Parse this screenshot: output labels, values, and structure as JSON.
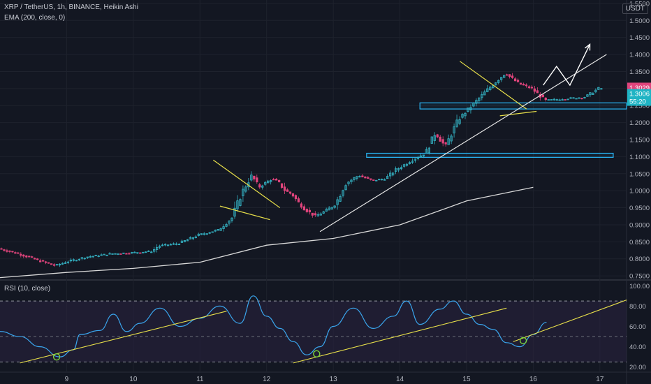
{
  "header": {
    "symbol_line": "XRP / TetherUS, 1h, BINANCE, Heikin Ashi",
    "ema_line": "EMA (200, close, 0)",
    "rsi_line": "RSI (10, close)",
    "currency": "USDT"
  },
  "colors": {
    "background": "#131722",
    "up": "#26a69a",
    "up_body": "#34b3c4",
    "down": "#e0447c",
    "ema": "#d8d8d8",
    "trendline": "#e8e04a",
    "support_box": "#29b6f6",
    "rsi_line": "#3aa6ee",
    "rsi_band": "#2a2340",
    "last_price_tag": "#e0447c",
    "price_tag": "#1fb4c4"
  },
  "chart_data": [
    {
      "type": "candlestick",
      "title": "XRP / TetherUS, 1h, BINANCE, Heikin Ashi",
      "ylim": [
        0.74,
        1.56
      ],
      "y_ticks": [
        0.75,
        0.8,
        0.85,
        0.9,
        0.95,
        1.0,
        1.05,
        1.1,
        1.15,
        1.2,
        1.25,
        1.3,
        1.35,
        1.4,
        1.45,
        1.5,
        1.55
      ],
      "y_tick_labels": [
        "0.7500",
        "0.8000",
        "0.8500",
        "0.9000",
        "0.9500",
        "1.0000",
        "1.0500",
        "1.1000",
        "1.1500",
        "1.2000",
        "1.2500",
        "1.3000",
        "1.3500",
        "1.4000",
        "1.4500",
        "1.5000",
        "1.5500"
      ],
      "xlim": [
        8,
        17.4
      ],
      "x_ticks": [
        9,
        10,
        11,
        12,
        13,
        14,
        15,
        16,
        17
      ],
      "x_tick_labels": [
        "9",
        "10",
        "11",
        "12",
        "13",
        "14",
        "15",
        "16",
        "17"
      ],
      "price_path": [
        [
          8.0,
          0.83
        ],
        [
          8.3,
          0.815
        ],
        [
          8.6,
          0.795
        ],
        [
          8.85,
          0.78
        ],
        [
          9.0,
          0.79
        ],
        [
          9.3,
          0.805
        ],
        [
          9.7,
          0.815
        ],
        [
          10.0,
          0.818
        ],
        [
          10.3,
          0.822
        ],
        [
          10.4,
          0.838
        ],
        [
          10.7,
          0.845
        ],
        [
          11.0,
          0.87
        ],
        [
          11.3,
          0.885
        ],
        [
          11.5,
          0.92
        ],
        [
          11.65,
          0.995
        ],
        [
          11.8,
          1.045
        ],
        [
          11.9,
          1.01
        ],
        [
          12.1,
          1.035
        ],
        [
          12.2,
          1.025
        ],
        [
          12.3,
          1.0
        ],
        [
          12.4,
          0.99
        ],
        [
          12.5,
          0.965
        ],
        [
          12.6,
          0.945
        ],
        [
          12.75,
          0.925
        ],
        [
          12.9,
          0.94
        ],
        [
          13.05,
          0.96
        ],
        [
          13.2,
          1.02
        ],
        [
          13.4,
          1.045
        ],
        [
          13.6,
          1.03
        ],
        [
          13.8,
          1.035
        ],
        [
          13.95,
          1.06
        ],
        [
          14.2,
          1.09
        ],
        [
          14.4,
          1.11
        ],
        [
          14.55,
          1.17
        ],
        [
          14.7,
          1.13
        ],
        [
          14.9,
          1.21
        ],
        [
          15.1,
          1.25
        ],
        [
          15.35,
          1.3
        ],
        [
          15.6,
          1.345
        ],
        [
          15.8,
          1.315
        ],
        [
          16.0,
          1.3
        ],
        [
          16.2,
          1.265
        ],
        [
          16.5,
          1.27
        ],
        [
          16.8,
          1.275
        ],
        [
          17.0,
          1.3
        ]
      ],
      "ema_path": [
        [
          8.0,
          0.745
        ],
        [
          9.0,
          0.76
        ],
        [
          10.0,
          0.772
        ],
        [
          11.0,
          0.79
        ],
        [
          12.0,
          0.84
        ],
        [
          13.0,
          0.86
        ],
        [
          14.0,
          0.9
        ],
        [
          15.0,
          0.97
        ],
        [
          16.0,
          1.01
        ]
      ],
      "last_price": "1.3029",
      "current_price": "1.3006",
      "countdown": "55:20",
      "annotations": {
        "support_zones": [
          {
            "x_from": 14.3,
            "x_to": 17.4,
            "y_low": 1.24,
            "y_high": 1.258
          },
          {
            "x_from": 13.5,
            "x_to": 17.2,
            "y_low": 1.098,
            "y_high": 1.11
          }
        ],
        "wedge_1_upper": [
          [
            11.2,
            1.09
          ],
          [
            12.2,
            0.95
          ]
        ],
        "wedge_1_lower": [
          [
            11.3,
            0.955
          ],
          [
            12.05,
            0.915
          ]
        ],
        "wedge_2_upper": [
          [
            14.9,
            1.38
          ],
          [
            15.9,
            1.24
          ]
        ],
        "wedge_2_lower": [
          [
            15.5,
            1.22
          ],
          [
            16.05,
            1.233
          ]
        ],
        "trendline": [
          [
            12.8,
            0.88
          ],
          [
            17.1,
            1.4
          ]
        ],
        "projection_arrow": [
          [
            16.15,
            1.31
          ],
          [
            16.35,
            1.365
          ],
          [
            16.55,
            1.31
          ],
          [
            16.85,
            1.43
          ]
        ]
      }
    },
    {
      "type": "line",
      "title": "RSI (10, close)",
      "ylim": [
        15,
        105
      ],
      "y_ticks": [
        20,
        40,
        60,
        80,
        100
      ],
      "y_tick_labels": [
        "20.00",
        "40.00",
        "60.00",
        "80.00",
        "100.00"
      ],
      "band": [
        25,
        85
      ],
      "midline": 50,
      "series": [
        {
          "values": [
            [
              8.0,
              55
            ],
            [
              8.3,
              50
            ],
            [
              8.6,
              40
            ],
            [
              8.9,
              30
            ],
            [
              9.1,
              37
            ],
            [
              9.2,
              52
            ],
            [
              9.5,
              56
            ],
            [
              9.7,
              72
            ],
            [
              9.9,
              55
            ],
            [
              10.1,
              63
            ],
            [
              10.4,
              78
            ],
            [
              10.7,
              60
            ],
            [
              11.0,
              68
            ],
            [
              11.3,
              80
            ],
            [
              11.6,
              63
            ],
            [
              11.8,
              90
            ],
            [
              12.0,
              70
            ],
            [
              12.2,
              58
            ],
            [
              12.4,
              45
            ],
            [
              12.6,
              32
            ],
            [
              12.8,
              40
            ],
            [
              13.0,
              60
            ],
            [
              13.3,
              78
            ],
            [
              13.6,
              58
            ],
            [
              13.9,
              70
            ],
            [
              14.1,
              85
            ],
            [
              14.3,
              62
            ],
            [
              14.6,
              77
            ],
            [
              14.8,
              85
            ],
            [
              15.0,
              72
            ],
            [
              15.2,
              62
            ],
            [
              15.4,
              57
            ],
            [
              15.6,
              44
            ],
            [
              15.8,
              40
            ],
            [
              16.0,
              52
            ],
            [
              16.2,
              64
            ]
          ]
        }
      ],
      "annotations": {
        "trendlines": [
          [
            [
              8.3,
              24
            ],
            [
              11.4,
              75
            ]
          ],
          [
            [
              12.4,
              24
            ],
            [
              15.6,
              78
            ]
          ],
          [
            [
              15.7,
              45
            ],
            [
              17.4,
              86
            ]
          ]
        ],
        "circles": [
          [
            8.85,
            30
          ],
          [
            12.75,
            33
          ],
          [
            15.85,
            46
          ]
        ]
      }
    }
  ]
}
